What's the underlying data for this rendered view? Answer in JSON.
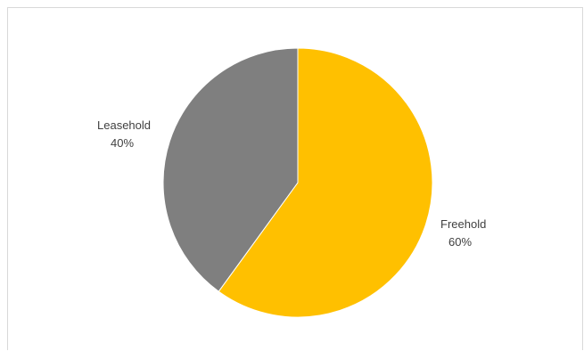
{
  "chart_data": {
    "type": "pie",
    "title": "",
    "categories": [
      "Freehold",
      "Leasehold"
    ],
    "values": [
      60,
      40
    ],
    "labels": [
      {
        "name": "Freehold",
        "percent": "60%"
      },
      {
        "name": "Leasehold",
        "percent": "40%"
      }
    ],
    "colors": [
      "#FFC000",
      "#7F7F7F"
    ],
    "start_angle_deg": 0,
    "direction": "clockwise",
    "legend": "none",
    "label_color": "#404040"
  }
}
